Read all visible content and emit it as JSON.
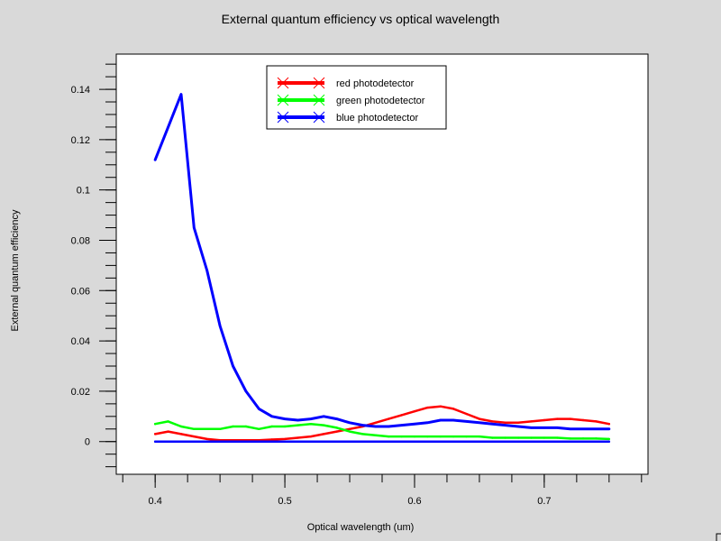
{
  "chart_data": {
    "type": "line",
    "title": "External quantum efficiency vs optical wavelength",
    "xlabel": "Optical wavelength (um)",
    "ylabel": "External quantum efficiency",
    "xlim": [
      0.37,
      0.78
    ],
    "ylim": [
      -0.013,
      0.154
    ],
    "x_ticks": [
      0.4,
      0.5,
      0.6,
      0.7
    ],
    "x_tick_labels": [
      "0.4",
      "0.5",
      "0.6",
      "0.7"
    ],
    "y_ticks": [
      0,
      0.02,
      0.04,
      0.06,
      0.08,
      0.1,
      0.12,
      0.14
    ],
    "y_tick_labels": [
      "0",
      "0.02",
      "0.04",
      "0.06",
      "0.08",
      "0.1",
      "0.12",
      "0.14"
    ],
    "grid": false,
    "legend_position": "top-center",
    "x": [
      0.4,
      0.41,
      0.42,
      0.43,
      0.44,
      0.45,
      0.46,
      0.47,
      0.48,
      0.49,
      0.5,
      0.51,
      0.52,
      0.53,
      0.54,
      0.55,
      0.56,
      0.57,
      0.58,
      0.59,
      0.6,
      0.61,
      0.62,
      0.63,
      0.64,
      0.65,
      0.66,
      0.67,
      0.68,
      0.69,
      0.7,
      0.71,
      0.72,
      0.73,
      0.74,
      0.75
    ],
    "series": [
      {
        "name": "red photodetector",
        "color": "#ff0000",
        "values": [
          0.003,
          0.004,
          0.003,
          0.002,
          0.001,
          0.0005,
          0.0005,
          0.0005,
          0.0005,
          0.0008,
          0.001,
          0.0015,
          0.002,
          0.003,
          0.004,
          0.005,
          0.006,
          0.0075,
          0.009,
          0.0105,
          0.012,
          0.0135,
          0.014,
          0.013,
          0.011,
          0.009,
          0.008,
          0.0075,
          0.0075,
          0.008,
          0.0085,
          0.009,
          0.009,
          0.0085,
          0.008,
          0.007
        ]
      },
      {
        "name": "green photodetector",
        "color": "#00ff00",
        "values": [
          0.007,
          0.008,
          0.006,
          0.005,
          0.005,
          0.005,
          0.006,
          0.006,
          0.005,
          0.006,
          0.006,
          0.0065,
          0.007,
          0.0065,
          0.0055,
          0.004,
          0.003,
          0.0025,
          0.002,
          0.002,
          0.002,
          0.002,
          0.002,
          0.002,
          0.002,
          0.002,
          0.0015,
          0.0015,
          0.0015,
          0.0015,
          0.0015,
          0.0015,
          0.0012,
          0.0012,
          0.0012,
          0.001
        ]
      },
      {
        "name": "blue photodetector",
        "color": "#0000ff",
        "values": [
          0.112,
          0.125,
          0.138,
          0.085,
          0.068,
          0.046,
          0.03,
          0.02,
          0.013,
          0.01,
          0.009,
          0.0085,
          0.009,
          0.01,
          0.009,
          0.0075,
          0.0065,
          0.006,
          0.006,
          0.0065,
          0.007,
          0.0075,
          0.0085,
          0.0085,
          0.008,
          0.0075,
          0.007,
          0.0065,
          0.006,
          0.0055,
          0.0055,
          0.0055,
          0.005,
          0.005,
          0.005,
          0.005
        ]
      },
      {
        "name": "",
        "color": "#0000ff",
        "values": [
          0,
          0,
          0,
          0,
          0,
          0,
          0,
          0,
          0,
          0,
          0,
          0,
          0,
          0,
          0,
          0,
          0,
          0,
          0,
          0,
          0,
          0,
          0,
          0,
          0,
          0,
          0,
          0,
          0,
          0,
          0,
          0,
          0,
          0,
          0,
          0
        ]
      }
    ]
  }
}
